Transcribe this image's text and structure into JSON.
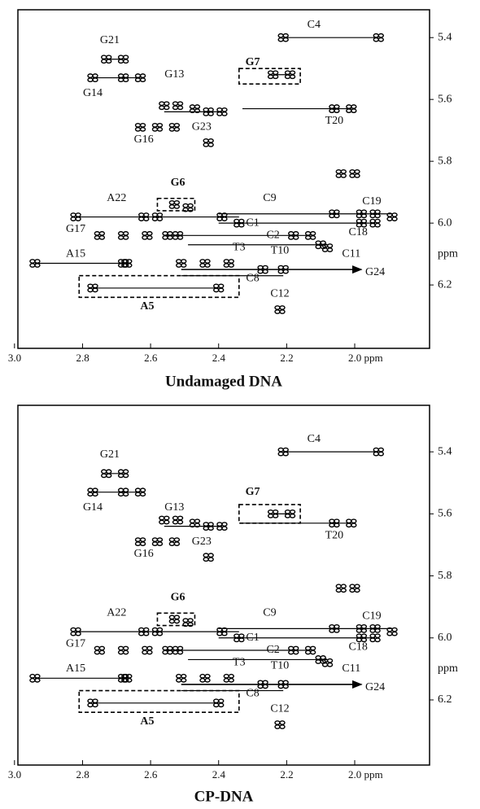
{
  "chart_data": [
    {
      "type": "nmr",
      "title": "Undamaged DNA",
      "xlim": [
        2.99,
        1.78
      ],
      "ylim": [
        5.31,
        6.405
      ],
      "xticks": [
        {
          "value": 3,
          "label": "3.0"
        },
        2.8,
        2.6,
        2.4,
        2.2,
        {
          "value": 2,
          "label": "2.0 ppm"
        }
      ],
      "yticks": [
        5.4,
        5.6,
        5.8,
        {
          "value": 6,
          "label": "6.0"
        },
        6.2
      ],
      "y_unit": "ppm",
      "peaks": {
        "x": [
          2.21,
          1.93,
          2.73,
          2.68,
          2.77,
          2.68,
          2.63,
          2.24,
          2.19,
          2.06,
          2.01,
          2.56,
          2.52,
          2.47,
          2.43,
          2.39,
          2.63,
          2.58,
          2.53,
          2.43,
          2.04,
          2.0,
          2.53,
          2.49,
          2.82,
          2.62,
          2.58,
          2.06,
          1.98,
          1.94,
          1.89,
          2.75,
          2.68,
          2.61,
          2.55,
          2.52,
          2.39,
          2.34,
          1.98,
          1.94,
          2.18,
          2.13,
          2.94,
          2.68,
          2.67,
          2.1,
          2.08,
          2.51,
          2.44,
          2.37,
          2.27,
          2.21,
          2.77,
          2.4,
          2.22
        ],
        "y": [
          5.4,
          5.4,
          5.47,
          5.47,
          5.53,
          5.53,
          5.53,
          5.52,
          5.52,
          5.63,
          5.63,
          5.62,
          5.62,
          5.63,
          5.64,
          5.64,
          5.69,
          5.69,
          5.69,
          5.74,
          5.84,
          5.84,
          5.94,
          5.95,
          5.98,
          5.98,
          5.98,
          5.97,
          5.97,
          5.97,
          5.98,
          6.04,
          6.04,
          6.04,
          6.04,
          6.04,
          5.98,
          6.0,
          6.0,
          6.0,
          6.04,
          6.04,
          6.13,
          6.13,
          6.13,
          6.07,
          6.08,
          6.13,
          6.13,
          6.13,
          6.15,
          6.15,
          6.21,
          6.21,
          6.28
        ]
      },
      "lines": [
        {
          "x": [
            2.21,
            1.93
          ],
          "y": 5.4
        },
        {
          "x": [
            2.73,
            2.68
          ],
          "y": 5.47
        },
        {
          "x": [
            2.77,
            2.63
          ],
          "y": 5.53
        },
        {
          "x": [
            2.24,
            2.19
          ],
          "y": 5.52
        },
        {
          "x": [
            2.33,
            2.01
          ],
          "y": 5.63
        },
        {
          "x": [
            2.56,
            2.39
          ],
          "y": 5.64
        },
        {
          "x": [
            2.82,
            2.34
          ],
          "y": 5.98
        },
        {
          "x": [
            2.4,
            1.89
          ],
          "y": 5.97
        },
        {
          "x": [
            2.4,
            1.94
          ],
          "y": 6.0
        },
        {
          "x": [
            2.56,
            2.13
          ],
          "y": 6.04
        },
        {
          "x": [
            2.94,
            2.67
          ],
          "y": 6.13
        },
        {
          "x": [
            2.49,
            2.08
          ],
          "y": 6.07
        },
        {
          "x": [
            2.51,
            1.98
          ],
          "y": 6.15,
          "arrow": true
        },
        {
          "x": [
            2.77,
            2.4
          ],
          "y": 6.21
        },
        {
          "x": [
            2.51,
            2.21
          ],
          "y": 6.17
        }
      ],
      "boxes": [
        {
          "x": [
            2.34,
            2.16
          ],
          "y": [
            5.5,
            5.55
          ]
        },
        {
          "x": [
            2.58,
            2.47
          ],
          "y": [
            5.92,
            5.96
          ]
        },
        {
          "x": [
            2.81,
            2.34
          ],
          "y": [
            6.17,
            6.24
          ]
        }
      ],
      "annotations": [
        {
          "text": "C4",
          "x": 2.12,
          "y": 5.36
        },
        {
          "text": "G21",
          "x": 2.72,
          "y": 5.41
        },
        {
          "text": "G14",
          "x": 2.77,
          "y": 5.58
        },
        {
          "text": "G7",
          "x": 2.3,
          "y": 5.48,
          "bold": true
        },
        {
          "text": "T20",
          "x": 2.06,
          "y": 5.67
        },
        {
          "text": "G13",
          "x": 2.53,
          "y": 5.52
        },
        {
          "text": "G23",
          "x": 2.45,
          "y": 5.69
        },
        {
          "text": "G16",
          "x": 2.62,
          "y": 5.73
        },
        {
          "text": "G6",
          "x": 2.52,
          "y": 5.87,
          "bold": true
        },
        {
          "text": "A22",
          "x": 2.7,
          "y": 5.92
        },
        {
          "text": "C9",
          "x": 2.25,
          "y": 5.92
        },
        {
          "text": "C19",
          "x": 1.95,
          "y": 5.93
        },
        {
          "text": "G17",
          "x": 2.82,
          "y": 6.02
        },
        {
          "text": "C1",
          "x": 2.3,
          "y": 6.0
        },
        {
          "text": "C18",
          "x": 1.99,
          "y": 6.03
        },
        {
          "text": "C2",
          "x": 2.24,
          "y": 6.04
        },
        {
          "text": "A15",
          "x": 2.82,
          "y": 6.1
        },
        {
          "text": "T3",
          "x": 2.34,
          "y": 6.08
        },
        {
          "text": "T10",
          "x": 2.22,
          "y": 6.09
        },
        {
          "text": "C11",
          "x": 2.01,
          "y": 6.1
        },
        {
          "text": "G24",
          "x": 1.94,
          "y": 6.16
        },
        {
          "text": "C8",
          "x": 2.3,
          "y": 6.18
        },
        {
          "text": "C12",
          "x": 2.22,
          "y": 6.23
        },
        {
          "text": "A5",
          "x": 2.61,
          "y": 6.27,
          "bold": true
        }
      ]
    },
    {
      "type": "nmr",
      "title": "CP-DNA",
      "xlim": [
        2.99,
        1.78
      ],
      "ylim": [
        5.25,
        6.41
      ],
      "xticks": [
        {
          "value": 3,
          "label": "3.0"
        },
        2.8,
        2.6,
        2.4,
        2.2,
        {
          "value": 2,
          "label": "2.0 ppm"
        }
      ],
      "yticks": [
        5.4,
        5.6,
        5.8,
        {
          "value": 6,
          "label": "6.0"
        },
        6.2
      ],
      "y_unit": "ppm",
      "peaks": {
        "x": [
          2.21,
          1.93,
          2.73,
          2.68,
          2.77,
          2.68,
          2.63,
          2.24,
          2.19,
          2.06,
          2.01,
          2.56,
          2.52,
          2.47,
          2.43,
          2.39,
          2.63,
          2.58,
          2.53,
          2.43,
          2.04,
          2.0,
          2.53,
          2.49,
          2.82,
          2.62,
          2.58,
          2.06,
          1.98,
          1.94,
          1.89,
          2.75,
          2.68,
          2.61,
          2.55,
          2.52,
          2.39,
          2.34,
          1.98,
          1.94,
          2.18,
          2.13,
          2.94,
          2.68,
          2.67,
          2.1,
          2.08,
          2.51,
          2.44,
          2.37,
          2.27,
          2.21,
          2.77,
          2.4,
          2.22
        ],
        "y": [
          5.4,
          5.4,
          5.47,
          5.47,
          5.53,
          5.53,
          5.53,
          5.6,
          5.6,
          5.63,
          5.63,
          5.62,
          5.62,
          5.63,
          5.64,
          5.64,
          5.69,
          5.69,
          5.69,
          5.74,
          5.84,
          5.84,
          5.94,
          5.95,
          5.98,
          5.98,
          5.98,
          5.97,
          5.97,
          5.97,
          5.98,
          6.04,
          6.04,
          6.04,
          6.04,
          6.04,
          5.98,
          6.0,
          6.0,
          6.0,
          6.04,
          6.04,
          6.13,
          6.13,
          6.13,
          6.07,
          6.08,
          6.13,
          6.13,
          6.13,
          6.15,
          6.15,
          6.21,
          6.21,
          6.28
        ]
      },
      "lines": [
        {
          "x": [
            2.21,
            1.93
          ],
          "y": 5.4
        },
        {
          "x": [
            2.73,
            2.68
          ],
          "y": 5.47
        },
        {
          "x": [
            2.77,
            2.63
          ],
          "y": 5.53
        },
        {
          "x": [
            2.24,
            2.19
          ],
          "y": 5.6
        },
        {
          "x": [
            2.33,
            2.01
          ],
          "y": 5.63
        },
        {
          "x": [
            2.56,
            2.39
          ],
          "y": 5.64
        },
        {
          "x": [
            2.82,
            2.34
          ],
          "y": 5.98
        },
        {
          "x": [
            2.4,
            1.89
          ],
          "y": 5.97
        },
        {
          "x": [
            2.4,
            1.94
          ],
          "y": 6.0
        },
        {
          "x": [
            2.56,
            2.13
          ],
          "y": 6.04
        },
        {
          "x": [
            2.94,
            2.67
          ],
          "y": 6.13
        },
        {
          "x": [
            2.49,
            2.08
          ],
          "y": 6.07
        },
        {
          "x": [
            2.51,
            1.98
          ],
          "y": 6.15,
          "arrow": true
        },
        {
          "x": [
            2.77,
            2.4
          ],
          "y": 6.21
        },
        {
          "x": [
            2.51,
            2.21
          ],
          "y": 6.17
        }
      ],
      "boxes": [
        {
          "x": [
            2.34,
            2.16
          ],
          "y": [
            5.57,
            5.63
          ]
        },
        {
          "x": [
            2.58,
            2.47
          ],
          "y": [
            5.92,
            5.96
          ]
        },
        {
          "x": [
            2.81,
            2.34
          ],
          "y": [
            6.17,
            6.24
          ]
        }
      ],
      "annotations": [
        {
          "text": "C4",
          "x": 2.12,
          "y": 5.36
        },
        {
          "text": "G21",
          "x": 2.72,
          "y": 5.41
        },
        {
          "text": "G14",
          "x": 2.77,
          "y": 5.58
        },
        {
          "text": "G7",
          "x": 2.3,
          "y": 5.53,
          "bold": true
        },
        {
          "text": "T20",
          "x": 2.06,
          "y": 5.67
        },
        {
          "text": "G13",
          "x": 2.53,
          "y": 5.58
        },
        {
          "text": "G23",
          "x": 2.45,
          "y": 5.69
        },
        {
          "text": "G16",
          "x": 2.62,
          "y": 5.73
        },
        {
          "text": "G6",
          "x": 2.52,
          "y": 5.87,
          "bold": true
        },
        {
          "text": "A22",
          "x": 2.7,
          "y": 5.92
        },
        {
          "text": "C9",
          "x": 2.25,
          "y": 5.92
        },
        {
          "text": "C19",
          "x": 1.95,
          "y": 5.93
        },
        {
          "text": "G17",
          "x": 2.82,
          "y": 6.02
        },
        {
          "text": "C1",
          "x": 2.3,
          "y": 6.0
        },
        {
          "text": "C18",
          "x": 1.99,
          "y": 6.03
        },
        {
          "text": "C2",
          "x": 2.24,
          "y": 6.04
        },
        {
          "text": "A15",
          "x": 2.82,
          "y": 6.1
        },
        {
          "text": "T3",
          "x": 2.34,
          "y": 6.08
        },
        {
          "text": "T10",
          "x": 2.22,
          "y": 6.09
        },
        {
          "text": "C11",
          "x": 2.01,
          "y": 6.1
        },
        {
          "text": "G24",
          "x": 1.94,
          "y": 6.16
        },
        {
          "text": "C8",
          "x": 2.3,
          "y": 6.18
        },
        {
          "text": "C12",
          "x": 2.22,
          "y": 6.23
        },
        {
          "text": "A5",
          "x": 2.61,
          "y": 6.27,
          "bold": true
        }
      ]
    }
  ]
}
